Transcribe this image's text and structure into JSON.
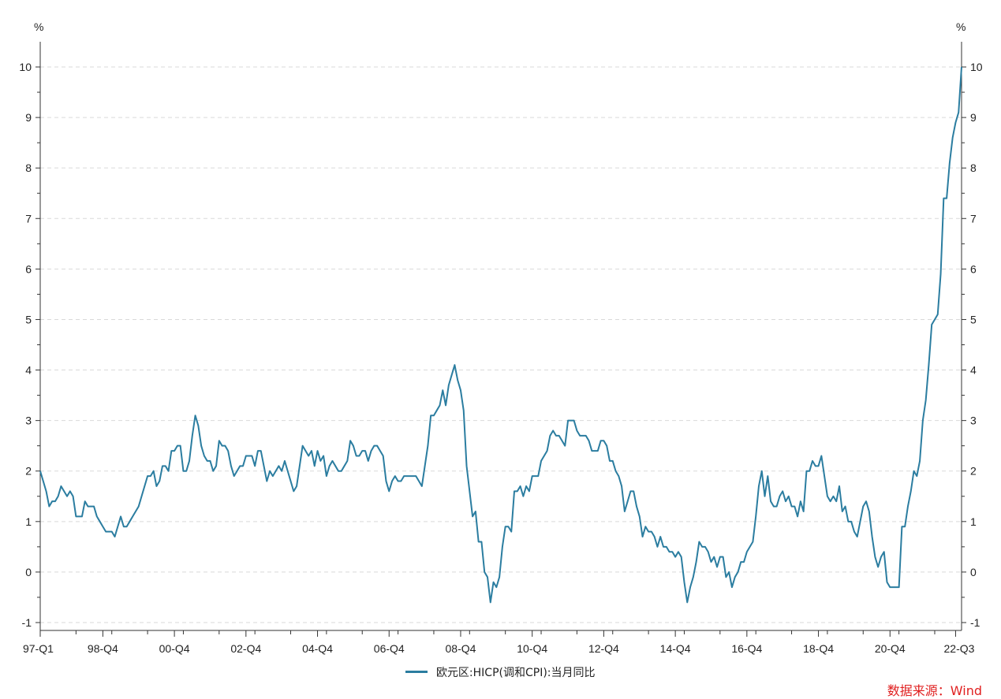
{
  "chart_data": {
    "type": "line",
    "title": "",
    "y_unit_left": "%",
    "y_unit_right": "%",
    "ylim": [
      -1,
      10
    ],
    "yticks": [
      -1,
      0,
      1,
      2,
      3,
      4,
      5,
      6,
      7,
      8,
      9,
      10
    ],
    "x_tick_labels": [
      "97-Q1",
      "98-Q4",
      "00-Q4",
      "02-Q4",
      "04-Q4",
      "06-Q4",
      "08-Q4",
      "10-Q4",
      "12-Q4",
      "14-Q4",
      "16-Q4",
      "18-Q4",
      "20-Q4",
      "22-Q3"
    ],
    "x_tick_months": [
      "1997-02",
      "1998-11",
      "2000-11",
      "2002-11",
      "2004-11",
      "2006-11",
      "2008-11",
      "2010-11",
      "2012-11",
      "2014-11",
      "2016-11",
      "2018-11",
      "2020-11",
      "2022-09"
    ],
    "grid": true,
    "legend_position": "bottom-center",
    "colors": {
      "series": "#2b7da0",
      "axis": "#333333",
      "grid": "#d9d9d9",
      "source": "#e02020"
    },
    "series": [
      {
        "name": "欧元区:HICP(调和CPI):当月同比",
        "start": "1997-02",
        "frequency": "monthly",
        "values": [
          2.0,
          1.8,
          1.6,
          1.3,
          1.4,
          1.4,
          1.5,
          1.7,
          1.6,
          1.5,
          1.6,
          1.5,
          1.1,
          1.1,
          1.1,
          1.4,
          1.3,
          1.3,
          1.3,
          1.1,
          1.0,
          0.9,
          0.8,
          0.8,
          0.8,
          0.7,
          0.9,
          1.1,
          0.9,
          0.9,
          1.0,
          1.1,
          1.2,
          1.3,
          1.5,
          1.7,
          1.9,
          1.9,
          2.0,
          1.7,
          1.8,
          2.1,
          2.1,
          2.0,
          2.4,
          2.4,
          2.5,
          2.5,
          2.0,
          2.0,
          2.2,
          2.7,
          3.1,
          2.9,
          2.5,
          2.3,
          2.2,
          2.2,
          2.0,
          2.1,
          2.6,
          2.5,
          2.5,
          2.4,
          2.1,
          1.9,
          2.0,
          2.1,
          2.1,
          2.3,
          2.3,
          2.3,
          2.1,
          2.4,
          2.4,
          2.1,
          1.8,
          2.0,
          1.9,
          2.0,
          2.1,
          2.0,
          2.2,
          2.0,
          1.8,
          1.6,
          1.7,
          2.1,
          2.5,
          2.4,
          2.3,
          2.4,
          2.1,
          2.4,
          2.2,
          2.3,
          1.9,
          2.1,
          2.2,
          2.1,
          2.0,
          2.0,
          2.1,
          2.2,
          2.6,
          2.5,
          2.3,
          2.3,
          2.4,
          2.4,
          2.2,
          2.4,
          2.5,
          2.5,
          2.4,
          2.3,
          1.8,
          1.6,
          1.8,
          1.9,
          1.8,
          1.8,
          1.9,
          1.9,
          1.9,
          1.9,
          1.9,
          1.8,
          1.7,
          2.1,
          2.5,
          3.1,
          3.1,
          3.2,
          3.3,
          3.6,
          3.3,
          3.7,
          3.9,
          4.1,
          3.8,
          3.6,
          3.2,
          2.1,
          1.6,
          1.1,
          1.2,
          0.6,
          0.6,
          0.0,
          -0.1,
          -0.6,
          -0.2,
          -0.3,
          -0.1,
          0.5,
          0.9,
          0.9,
          0.8,
          1.6,
          1.6,
          1.7,
          1.5,
          1.7,
          1.6,
          1.9,
          1.9,
          1.9,
          2.2,
          2.3,
          2.4,
          2.7,
          2.8,
          2.7,
          2.7,
          2.6,
          2.5,
          3.0,
          3.0,
          3.0,
          2.8,
          2.7,
          2.7,
          2.7,
          2.6,
          2.4,
          2.4,
          2.4,
          2.6,
          2.6,
          2.5,
          2.2,
          2.2,
          2.0,
          1.9,
          1.7,
          1.2,
          1.4,
          1.6,
          1.6,
          1.3,
          1.1,
          0.7,
          0.9,
          0.8,
          0.8,
          0.7,
          0.5,
          0.7,
          0.5,
          0.5,
          0.4,
          0.4,
          0.3,
          0.4,
          0.3,
          -0.2,
          -0.6,
          -0.3,
          -0.1,
          0.2,
          0.6,
          0.5,
          0.5,
          0.4,
          0.2,
          0.3,
          0.1,
          0.3,
          0.3,
          -0.1,
          0.0,
          -0.3,
          -0.1,
          0.0,
          0.2,
          0.2,
          0.4,
          0.5,
          0.6,
          1.1,
          1.7,
          2.0,
          1.5,
          1.9,
          1.4,
          1.3,
          1.3,
          1.5,
          1.6,
          1.4,
          1.5,
          1.3,
          1.3,
          1.1,
          1.4,
          1.2,
          2.0,
          2.0,
          2.2,
          2.1,
          2.1,
          2.3,
          1.9,
          1.5,
          1.4,
          1.5,
          1.4,
          1.7,
          1.2,
          1.3,
          1.0,
          1.0,
          0.8,
          0.7,
          1.0,
          1.3,
          1.4,
          1.2,
          0.7,
          0.3,
          0.1,
          0.3,
          0.4,
          -0.2,
          -0.3,
          -0.3,
          -0.3,
          -0.3,
          0.9,
          0.9,
          1.3,
          1.6,
          2.0,
          1.9,
          2.2,
          3.0,
          3.4,
          4.1,
          4.9,
          5.0,
          5.1,
          5.9,
          7.4,
          7.4,
          8.1,
          8.6,
          8.9,
          9.1,
          10.0
        ]
      }
    ]
  },
  "legend": {
    "label": "欧元区:HICP(调和CPI):当月同比"
  },
  "source": {
    "label": "数据来源：Wind"
  }
}
